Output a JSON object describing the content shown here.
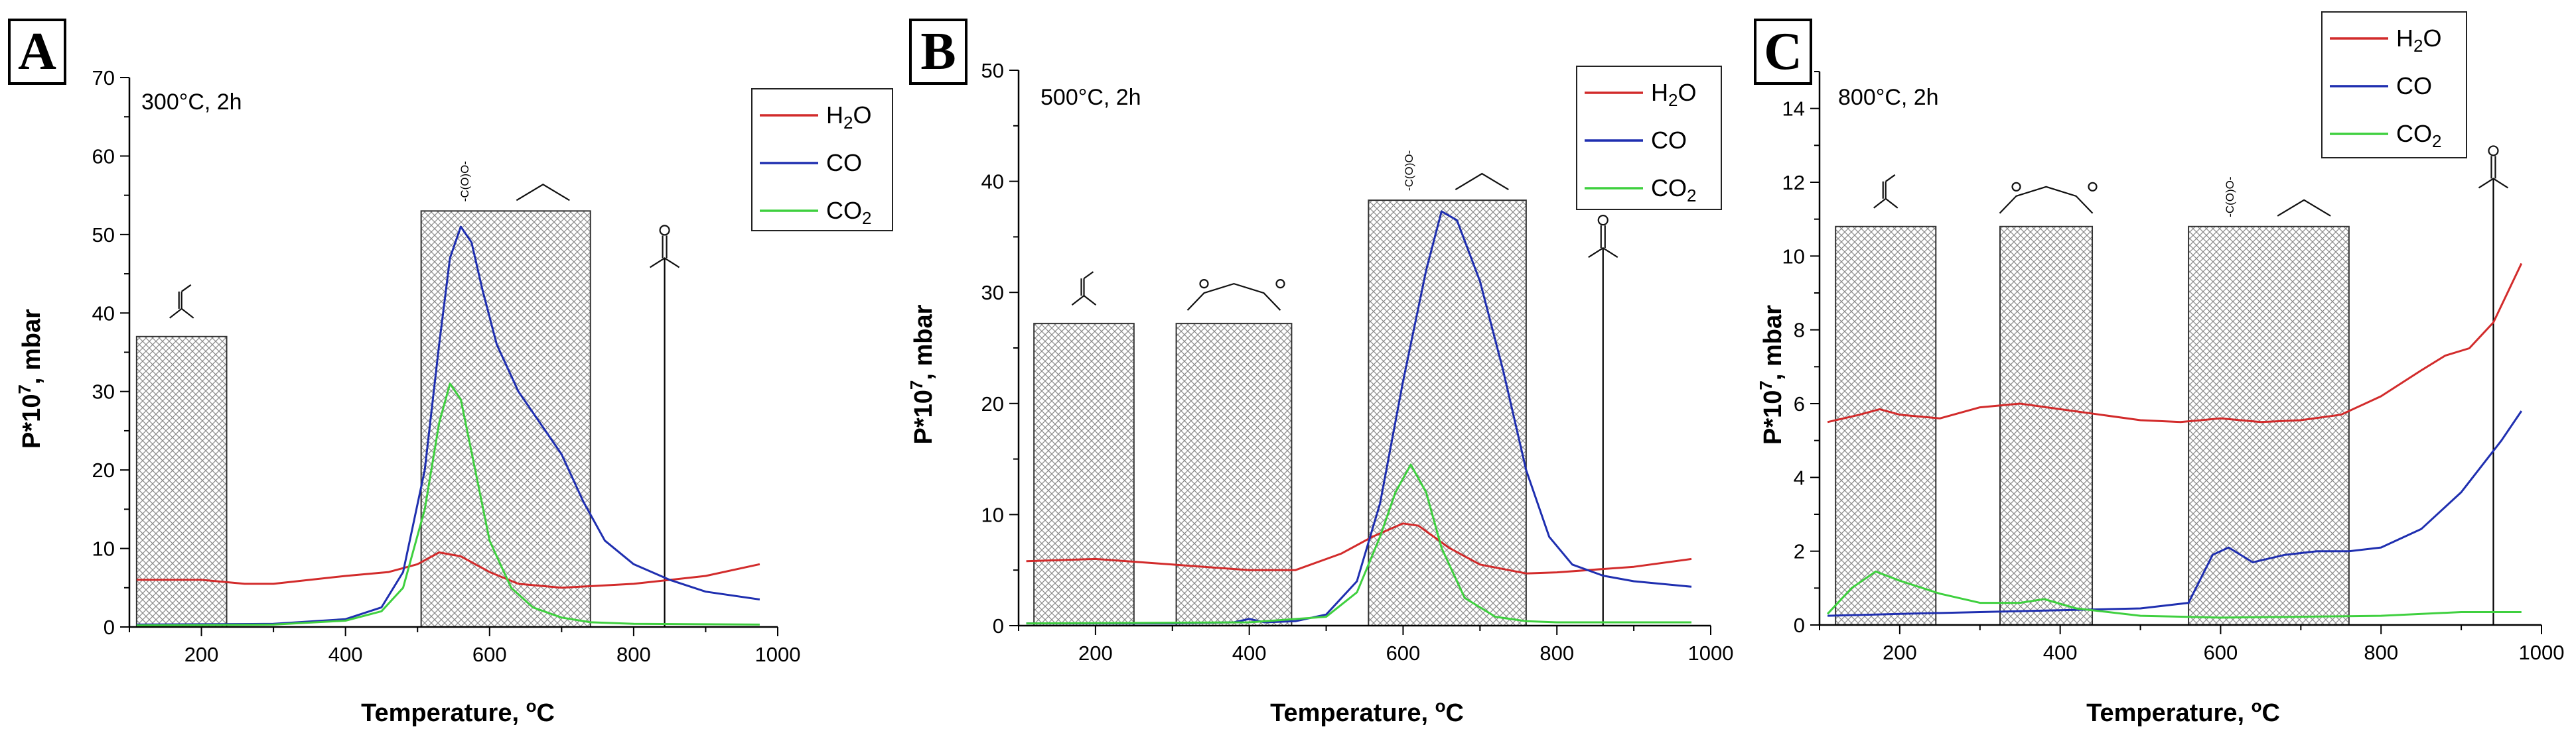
{
  "figure": {
    "y_axis_title": "P*10",
    "y_axis_title_sup": "7",
    "y_axis_title_suffix": ", mbar",
    "x_axis_title": "Temperature, ",
    "x_axis_title_sup": "o",
    "x_axis_title_suffix": "C"
  },
  "chart_data": [
    {
      "type": "line",
      "panel": "A",
      "condition": "300°C, 2h",
      "xlabel": "Temperature, °C",
      "ylabel": "P*10^7, mbar",
      "xlim": [
        100,
        1000
      ],
      "ylim": [
        0,
        70
      ],
      "xticks": [
        200,
        400,
        600,
        800,
        1000
      ],
      "yticks": [
        0,
        10,
        20,
        30,
        40,
        50,
        60,
        70
      ],
      "legend": [
        "H2O",
        "CO",
        "CO2"
      ],
      "legend_position": "top-right",
      "series": [
        {
          "name": "H2O",
          "color": "#d22b2b",
          "x": [
            110,
            200,
            260,
            300,
            400,
            460,
            500,
            530,
            560,
            600,
            640,
            700,
            800,
            900,
            975
          ],
          "y": [
            6,
            6,
            5.5,
            5.5,
            6.5,
            7,
            8,
            9.5,
            9,
            7,
            5.5,
            5,
            5.5,
            6.5,
            8
          ]
        },
        {
          "name": "CO",
          "color": "#1f2fb0",
          "x": [
            110,
            300,
            400,
            450,
            480,
            510,
            530,
            545,
            560,
            575,
            590,
            610,
            640,
            670,
            700,
            730,
            760,
            800,
            850,
            900,
            975
          ],
          "y": [
            0.3,
            0.4,
            1,
            2.5,
            7,
            20,
            36,
            47,
            51,
            49,
            43,
            36,
            30,
            26,
            22,
            16,
            11,
            8,
            6,
            4.5,
            3.5
          ]
        },
        {
          "name": "CO2",
          "color": "#3fd03f",
          "x": [
            110,
            300,
            400,
            450,
            480,
            510,
            530,
            545,
            560,
            580,
            600,
            630,
            660,
            700,
            740,
            800,
            975
          ],
          "y": [
            0.2,
            0.3,
            0.8,
            2,
            5,
            15,
            26,
            31,
            29,
            20,
            11,
            5,
            2.5,
            1.2,
            0.6,
            0.4,
            0.3
          ]
        }
      ],
      "annotations": [
        {
          "label": "carboxylic acid",
          "type": "box",
          "x_range": [
            110,
            235
          ],
          "top": 37
        },
        {
          "label": "-C(O)O- / ether",
          "type": "box",
          "x_range": [
            505,
            740
          ],
          "top": 53
        },
        {
          "label": "ketone",
          "type": "line",
          "x": 843,
          "top": 47
        }
      ]
    },
    {
      "type": "line",
      "panel": "B",
      "condition": "500°C, 2h",
      "xlabel": "Temperature, °C",
      "ylabel": "P*10^7, mbar",
      "xlim": [
        100,
        1000
      ],
      "ylim": [
        0,
        50
      ],
      "xticks": [
        200,
        400,
        600,
        800,
        1000
      ],
      "yticks": [
        0,
        10,
        20,
        30,
        40,
        50
      ],
      "legend": [
        "H2O",
        "CO",
        "CO2"
      ],
      "legend_position": "top-right",
      "series": [
        {
          "name": "H2O",
          "color": "#d22b2b",
          "x": [
            110,
            200,
            300,
            400,
            460,
            520,
            560,
            600,
            620,
            660,
            700,
            760,
            800,
            900,
            975
          ],
          "y": [
            5.8,
            6,
            5.5,
            5,
            5,
            6.5,
            8,
            9.2,
            9,
            7,
            5.5,
            4.7,
            4.8,
            5.3,
            6
          ]
        },
        {
          "name": "CO",
          "color": "#1f2fb0",
          "x": [
            110,
            300,
            380,
            400,
            420,
            460,
            500,
            540,
            570,
            600,
            630,
            650,
            670,
            700,
            730,
            760,
            790,
            820,
            860,
            900,
            975
          ],
          "y": [
            0.2,
            0.2,
            0.3,
            0.6,
            0.3,
            0.4,
            1,
            4,
            11,
            22,
            32,
            37.3,
            36.5,
            31,
            23,
            14,
            8,
            5.5,
            4.5,
            4,
            3.5
          ]
        },
        {
          "name": "CO2",
          "color": "#3fd03f",
          "x": [
            110,
            400,
            500,
            540,
            570,
            590,
            610,
            630,
            650,
            680,
            720,
            760,
            800,
            975
          ],
          "y": [
            0.2,
            0.3,
            0.8,
            3,
            8,
            12,
            14.5,
            12,
            7,
            2.5,
            0.8,
            0.4,
            0.3,
            0.3
          ]
        }
      ],
      "annotations": [
        {
          "label": "carboxylic acid",
          "type": "box",
          "x_range": [
            120,
            250
          ],
          "top": 27.2
        },
        {
          "label": "anhydride",
          "type": "box",
          "x_range": [
            305,
            455
          ],
          "top": 27.2
        },
        {
          "label": "-C(O)O- / ether",
          "type": "box",
          "x_range": [
            555,
            760
          ],
          "top": 38.3
        },
        {
          "label": "ketone",
          "type": "line",
          "x": 860,
          "top": 34
        }
      ]
    },
    {
      "type": "line",
      "panel": "C",
      "condition": "800°C, 2h",
      "xlabel": "Temperature, °C",
      "ylabel": "P*10^7, mbar",
      "xlim": [
        100,
        1000
      ],
      "ylim": [
        0,
        15
      ],
      "xticks": [
        200,
        400,
        600,
        800,
        1000
      ],
      "yticks": [
        0,
        2,
        4,
        6,
        8,
        10,
        12,
        14
      ],
      "legend": [
        "H2O",
        "CO",
        "CO2"
      ],
      "legend_position": "top-right",
      "series": [
        {
          "name": "H2O",
          "color": "#d22b2b",
          "x": [
            110,
            150,
            175,
            200,
            250,
            300,
            350,
            400,
            450,
            500,
            550,
            600,
            650,
            700,
            750,
            800,
            850,
            880,
            910,
            940,
            975
          ],
          "y": [
            5.5,
            5.7,
            5.85,
            5.7,
            5.6,
            5.9,
            6,
            5.85,
            5.7,
            5.55,
            5.5,
            5.6,
            5.5,
            5.55,
            5.7,
            6.2,
            6.9,
            7.3,
            7.5,
            8.2,
            9.8
          ]
        },
        {
          "name": "CO",
          "color": "#1f2fb0",
          "x": [
            110,
            200,
            300,
            400,
            500,
            560,
            590,
            610,
            640,
            680,
            720,
            760,
            800,
            850,
            900,
            950,
            975
          ],
          "y": [
            0.25,
            0.3,
            0.35,
            0.4,
            0.45,
            0.6,
            1.9,
            2.1,
            1.7,
            1.9,
            2,
            2,
            2.1,
            2.6,
            3.6,
            5,
            5.8
          ]
        },
        {
          "name": "CO2",
          "color": "#3fd03f",
          "x": [
            110,
            140,
            170,
            200,
            250,
            300,
            350,
            380,
            420,
            500,
            600,
            800,
            900,
            975
          ],
          "y": [
            0.3,
            1,
            1.45,
            1.2,
            0.85,
            0.6,
            0.6,
            0.7,
            0.45,
            0.25,
            0.2,
            0.25,
            0.35,
            0.35
          ]
        }
      ],
      "annotations": [
        {
          "label": "carboxylic acid",
          "type": "box",
          "x_range": [
            120,
            245
          ],
          "top": 10.8
        },
        {
          "label": "anhydride",
          "type": "box",
          "x_range": [
            325,
            440
          ],
          "top": 10.8
        },
        {
          "label": "-C(O)O- / ether",
          "type": "box",
          "x_range": [
            560,
            760
          ],
          "top": 10.8
        },
        {
          "label": "ketone",
          "type": "line",
          "x": 940,
          "top": 12.1
        }
      ]
    }
  ]
}
